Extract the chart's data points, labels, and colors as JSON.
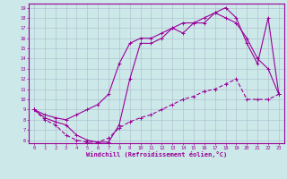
{
  "line1_x": [
    0,
    1,
    2,
    3,
    4,
    5,
    6,
    7,
    8,
    9,
    10,
    11,
    12,
    13,
    14,
    15,
    16,
    17,
    18,
    19,
    20,
    21,
    22,
    23
  ],
  "line1_y": [
    9.0,
    8.2,
    7.8,
    7.5,
    6.5,
    6.0,
    5.8,
    5.8,
    7.5,
    12.0,
    15.5,
    15.5,
    16.0,
    17.0,
    16.5,
    17.5,
    17.5,
    18.5,
    19.0,
    18.0,
    15.5,
    13.5,
    18.0,
    10.5
  ],
  "line2_x": [
    0,
    1,
    2,
    3,
    4,
    5,
    6,
    7,
    8,
    9,
    10,
    11,
    12,
    13,
    14,
    15,
    16,
    17,
    18,
    19,
    20,
    21,
    22,
    23
  ],
  "line2_y": [
    9.0,
    8.5,
    8.2,
    8.0,
    8.5,
    9.0,
    9.5,
    10.5,
    13.5,
    15.5,
    16.0,
    16.0,
    16.5,
    17.0,
    17.5,
    17.5,
    18.0,
    18.5,
    18.0,
    17.5,
    16.0,
    14.0,
    13.0,
    10.5
  ],
  "line3_x": [
    0,
    1,
    2,
    3,
    4,
    5,
    6,
    7,
    8,
    9,
    10,
    11,
    12,
    13,
    14,
    15,
    16,
    17,
    18,
    19,
    20,
    21,
    22,
    23
  ],
  "line3_y": [
    9.0,
    8.0,
    7.5,
    6.5,
    6.0,
    5.8,
    5.8,
    6.2,
    7.2,
    7.8,
    8.2,
    8.5,
    9.0,
    9.5,
    10.0,
    10.3,
    10.8,
    11.0,
    11.5,
    12.0,
    10.0,
    10.0,
    10.0,
    10.5
  ],
  "color": "#990099",
  "bg_color": "#cce8e8",
  "grid_color": "#aabbcc",
  "xlabel": "Windchill (Refroidissement éolien,°C)",
  "ylim_min": 6,
  "ylim_max": 19,
  "xlim_min": 0,
  "xlim_max": 23,
  "yticks": [
    6,
    7,
    8,
    9,
    10,
    11,
    12,
    13,
    14,
    15,
    16,
    17,
    18,
    19
  ],
  "xticks": [
    0,
    1,
    2,
    3,
    4,
    5,
    6,
    7,
    8,
    9,
    10,
    11,
    12,
    13,
    14,
    15,
    16,
    17,
    18,
    19,
    20,
    21,
    22,
    23
  ]
}
